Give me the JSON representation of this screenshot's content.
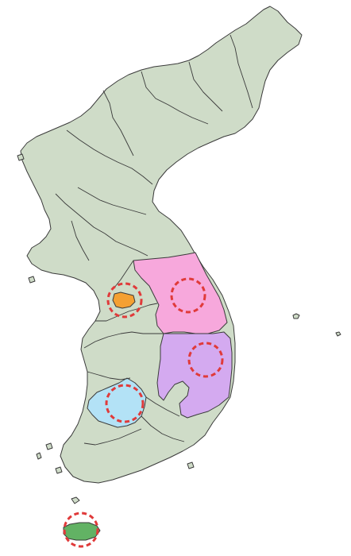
{
  "colors": {
    "background": "#ffffff",
    "land": "#cfdcc8",
    "border_line": "#3a3a3a",
    "marker": "#e03a3a",
    "highlight_orange": "#f4a032",
    "highlight_pink": "#f7a8dc",
    "highlight_purple": "#d4aaf0",
    "highlight_blue": "#b3e2f6",
    "highlight_green": "#62b264"
  },
  "highlights": [
    {
      "id": "seoul",
      "color": "highlight_orange"
    },
    {
      "id": "gangwon",
      "color": "highlight_pink"
    },
    {
      "id": "gyeongbuk",
      "color": "highlight_purple"
    },
    {
      "id": "gwangju",
      "color": "highlight_blue"
    },
    {
      "id": "jeju",
      "color": "highlight_green"
    }
  ],
  "markers": [
    {
      "target": "seoul",
      "style": "dashed-circle"
    },
    {
      "target": "gangwon",
      "style": "dashed-circle"
    },
    {
      "target": "gyeongbuk",
      "style": "dashed-circle"
    },
    {
      "target": "gwangju",
      "style": "dashed-circle"
    },
    {
      "target": "jeju",
      "style": "dashed-circle"
    }
  ]
}
